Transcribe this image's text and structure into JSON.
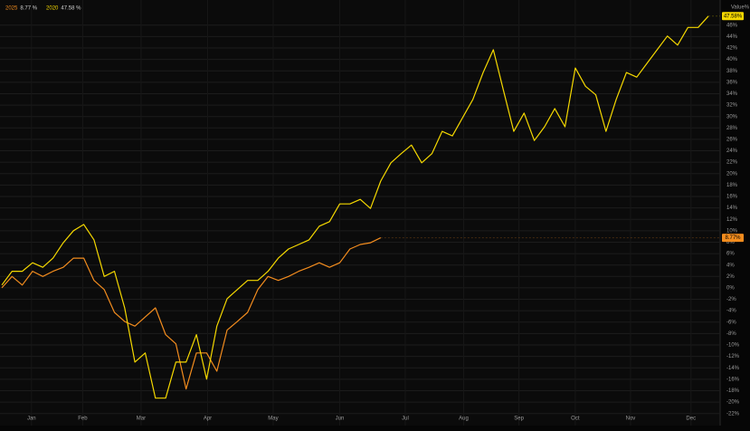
{
  "chart_data": {
    "type": "line",
    "axis_label": "Value%",
    "xlim": [
      0,
      69
    ],
    "xticks": [
      {
        "value": 2.9,
        "label": "Jan"
      },
      {
        "value": 7.9,
        "label": "Feb"
      },
      {
        "value": 13.6,
        "label": "Mar"
      },
      {
        "value": 20.1,
        "label": "Apr"
      },
      {
        "value": 26.5,
        "label": "May"
      },
      {
        "value": 33,
        "label": "Jun"
      },
      {
        "value": 39.4,
        "label": "Jul"
      },
      {
        "value": 45.1,
        "label": "Aug"
      },
      {
        "value": 50.5,
        "label": "Sep"
      },
      {
        "value": 56,
        "label": "Oct"
      },
      {
        "value": 61.4,
        "label": "Nov"
      },
      {
        "value": 67.3,
        "label": "Dec"
      }
    ],
    "ylim": [
      -23,
      48.5
    ],
    "yticks": [
      {
        "value": -22,
        "label": "-22%"
      },
      {
        "value": -20,
        "label": "-20%"
      },
      {
        "value": -18,
        "label": "-18%"
      },
      {
        "value": -16,
        "label": "-16%"
      },
      {
        "value": -14,
        "label": "-14%"
      },
      {
        "value": -12,
        "label": "-12%"
      },
      {
        "value": -10,
        "label": "-10%"
      },
      {
        "value": -8,
        "label": "-8%"
      },
      {
        "value": -6,
        "label": "-6%"
      },
      {
        "value": -4,
        "label": "-4%"
      },
      {
        "value": -2,
        "label": "-2%"
      },
      {
        "value": 0,
        "label": "0%"
      },
      {
        "value": 2,
        "label": "2%"
      },
      {
        "value": 4,
        "label": "4%"
      },
      {
        "value": 6,
        "label": "6%"
      },
      {
        "value": 8,
        "label": "8%"
      },
      {
        "value": 10,
        "label": "10%"
      },
      {
        "value": 12,
        "label": "12%"
      },
      {
        "value": 14,
        "label": "14%"
      },
      {
        "value": 16,
        "label": "16%"
      },
      {
        "value": 18,
        "label": "18%"
      },
      {
        "value": 20,
        "label": "20%"
      },
      {
        "value": 22,
        "label": "22%"
      },
      {
        "value": 24,
        "label": "24%"
      },
      {
        "value": 26,
        "label": "26%"
      },
      {
        "value": 28,
        "label": "28%"
      },
      {
        "value": 30,
        "label": "30%"
      },
      {
        "value": 32,
        "label": "32%"
      },
      {
        "value": 34,
        "label": "34%"
      },
      {
        "value": 36,
        "label": "36%"
      },
      {
        "value": 38,
        "label": "38%"
      },
      {
        "value": 40,
        "label": "40%"
      },
      {
        "value": 42,
        "label": "42%"
      },
      {
        "value": 44,
        "label": "44%"
      },
      {
        "value": 46,
        "label": "46%"
      }
    ],
    "grid": true,
    "series": [
      {
        "name": "2025",
        "color": "#f28c1e",
        "legend_value": "8.77 %",
        "end_label": "8.77%",
        "values": [
          0,
          2,
          0.5,
          2.9,
          2,
          2.9,
          3.6,
          5.2,
          5.2,
          1.3,
          -0.3,
          -4.3,
          -5.9,
          -6.7,
          -5.1,
          -3.5,
          -8.2,
          -9.8,
          -17.7,
          -11.4,
          -11.4,
          -14.6,
          -7.4,
          -5.9,
          -4.3,
          -0.3,
          2,
          1.3,
          2,
          2.9,
          3.6,
          4.4,
          3.6,
          4.4,
          6.8,
          7.6,
          7.9,
          8.77,
          null,
          null,
          null,
          null,
          null,
          null,
          null,
          null,
          null,
          null,
          null,
          null,
          null,
          null,
          null,
          null,
          null,
          null,
          null,
          null,
          null,
          null,
          null,
          null,
          null,
          null,
          null,
          null
        ]
      },
      {
        "name": "2020",
        "color": "#f5d800",
        "legend_value": "47.58 %",
        "end_label": "47.58%",
        "values": [
          0.5,
          2.9,
          2.9,
          4.4,
          3.6,
          5.2,
          7.9,
          10,
          11.1,
          8.4,
          2,
          2.9,
          -3.5,
          -13,
          -11.4,
          -19.3,
          -19.3,
          -13,
          -13,
          -8.2,
          -16,
          -6.7,
          -1.9,
          -0.3,
          1.3,
          1.3,
          2.9,
          5.2,
          6.8,
          7.6,
          8.4,
          10.8,
          11.6,
          14.7,
          14.7,
          15.5,
          13.9,
          18.7,
          21.9,
          23.5,
          25,
          21.9,
          23.5,
          27.4,
          26.6,
          29.8,
          33,
          37.7,
          41.7,
          34.5,
          27.4,
          30.6,
          25.8,
          28.2,
          31.4,
          28.2,
          38.5,
          35.3,
          33.8,
          27.4,
          33,
          37.7,
          36.9,
          39.3,
          41.7,
          44.1,
          42.5,
          45.6,
          45.6,
          47.58
        ]
      }
    ]
  }
}
